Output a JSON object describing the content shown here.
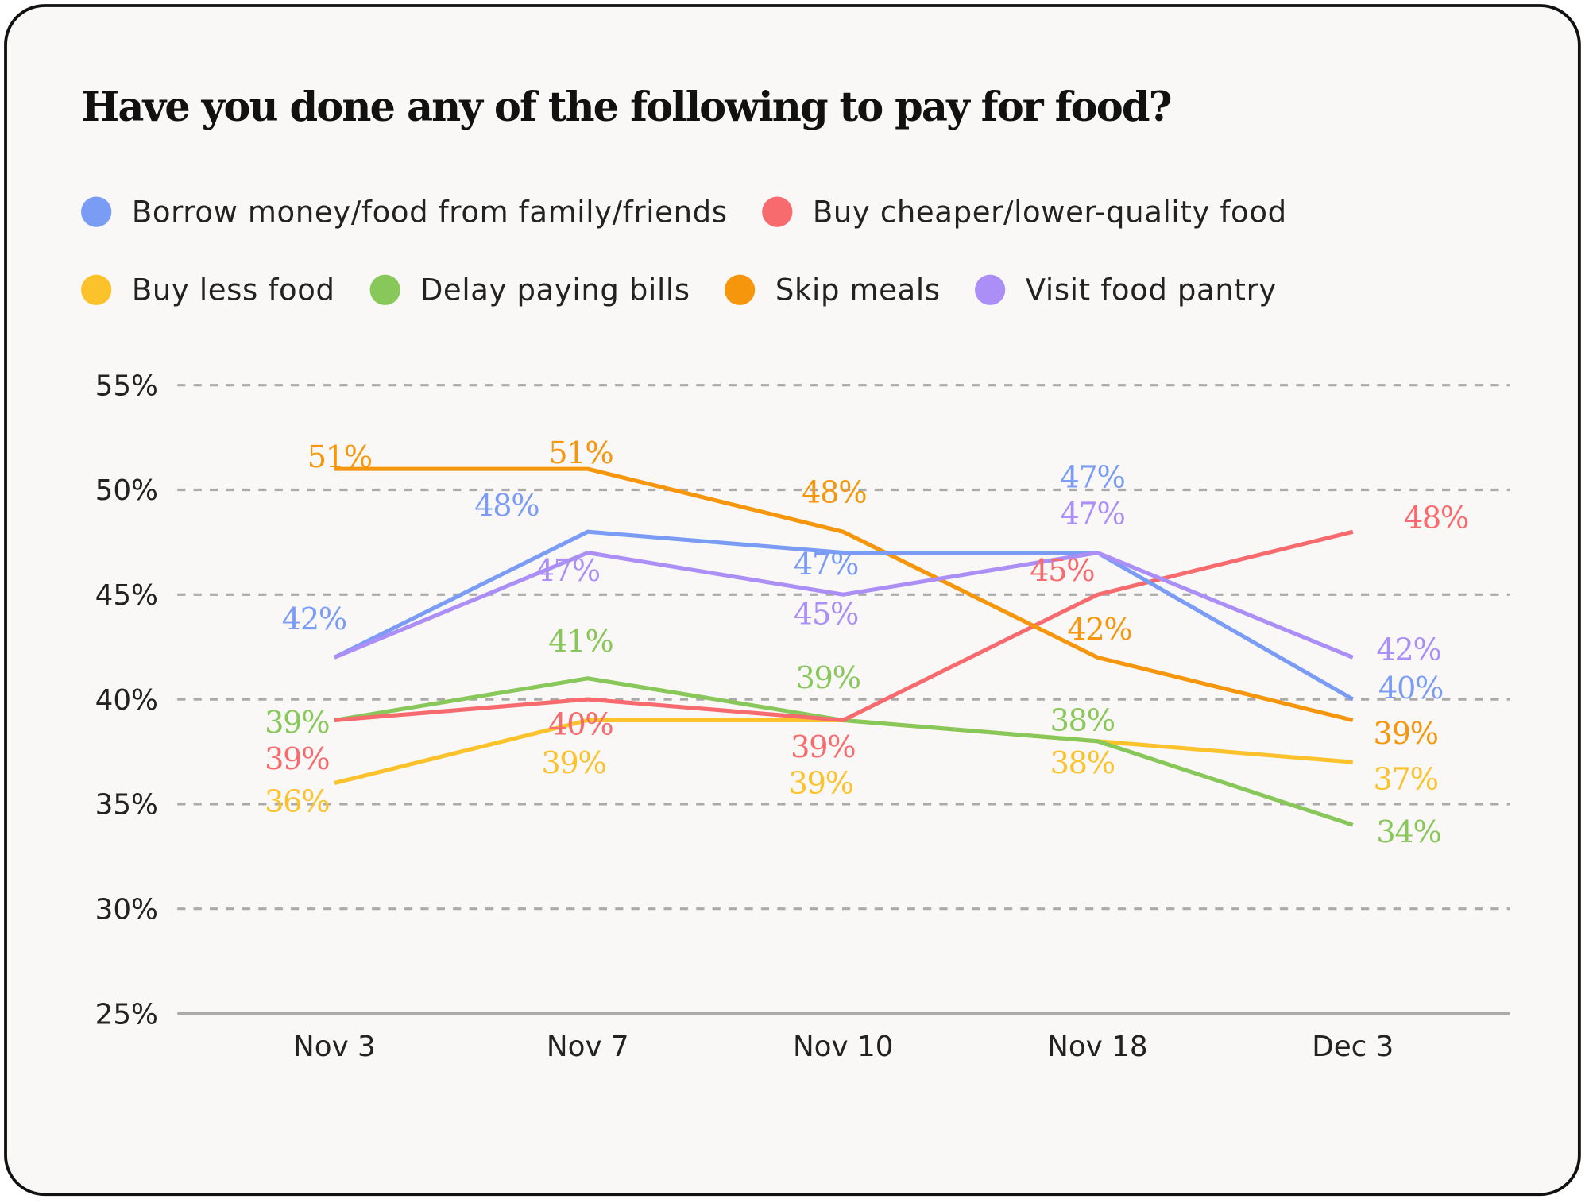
{
  "chart_data": {
    "type": "line",
    "title": "Have you done any of the following to pay for food?",
    "categories": [
      "Nov 3",
      "Nov 7",
      "Nov 10",
      "Nov 18",
      "Dec 3"
    ],
    "ylim": [
      25,
      55
    ],
    "yticks": [
      "55%",
      "50%",
      "45%",
      "40%",
      "35%",
      "30%",
      "25%"
    ],
    "ytick_values": [
      55,
      50,
      45,
      40,
      35,
      30,
      25
    ],
    "grid": true,
    "legend_placement": "top",
    "series": [
      {
        "name": "Borrow money/food from family/friends",
        "color": "#7b9cf5",
        "values": [
          42,
          48,
          47,
          47,
          40
        ],
        "labels": [
          "42%",
          "48%",
          "47%",
          "47%",
          "40%"
        ]
      },
      {
        "name": "Buy cheaper/lower-quality food",
        "color": "#f76b6e",
        "values": [
          39,
          40,
          39,
          45,
          48
        ],
        "labels": [
          "39%",
          "40%",
          "39%",
          "45%",
          "48%"
        ]
      },
      {
        "name": "Buy less food",
        "color": "#fcc22c",
        "values": [
          36,
          39,
          39,
          38,
          37
        ],
        "labels": [
          "36%",
          "39%",
          "39%",
          "38%",
          "37%"
        ]
      },
      {
        "name": "Delay paying bills",
        "color": "#88c75a",
        "values": [
          39,
          41,
          39,
          38,
          34
        ],
        "labels": [
          "39%",
          "41%",
          "39%",
          "38%",
          "34%"
        ]
      },
      {
        "name": "Skip meals",
        "color": "#f5960c",
        "values": [
          51,
          51,
          48,
          42,
          39
        ],
        "labels": [
          "51%",
          "51%",
          "48%",
          "42%",
          "39%"
        ]
      },
      {
        "name": "Visit food pantry",
        "color": "#ab8ff7",
        "values": [
          42,
          47,
          45,
          47,
          42
        ],
        "labels": [
          null,
          "47%",
          "45%",
          "47%",
          "42%"
        ]
      }
    ]
  }
}
